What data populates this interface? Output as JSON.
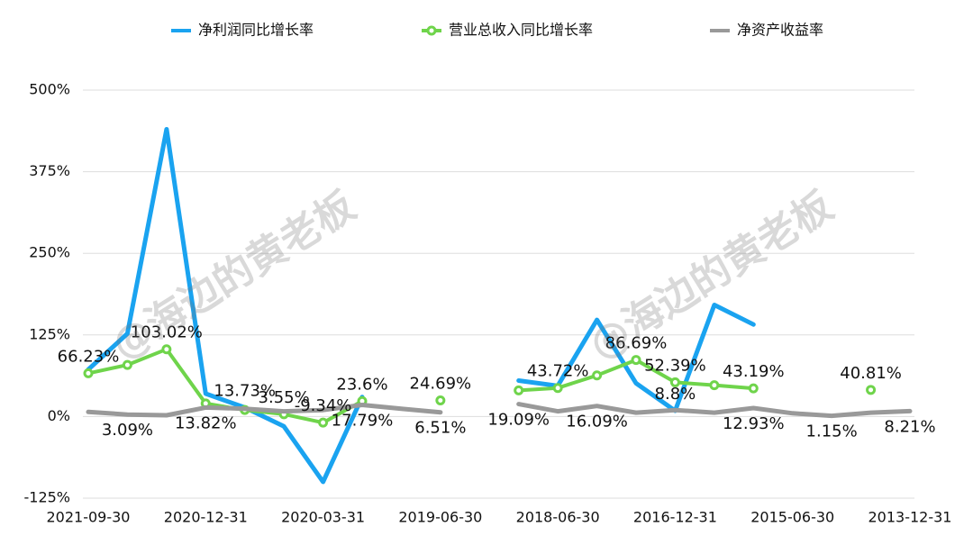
{
  "chart_data": {
    "type": "line",
    "categories": [
      "2021-09-30",
      null,
      null,
      "2020-12-31",
      null,
      null,
      "2020-03-31",
      null,
      null,
      "2019-06-30",
      null,
      null,
      "2018-06-30",
      null,
      null,
      "2016-12-31",
      null,
      null,
      "2015-06-30",
      null,
      null,
      "2013-12-31"
    ],
    "series": [
      {
        "name": "净利润同比增长率",
        "color": "#1aa3f0",
        "values": [
          72,
          127,
          440,
          35,
          13.73,
          -15,
          -100,
          30,
          null,
          null,
          null,
          55,
          47,
          148,
          51,
          8.8,
          171,
          141,
          null,
          null,
          null,
          null
        ],
        "value_labels": [
          null,
          null,
          null,
          null,
          "13.73%",
          null,
          null,
          null,
          null,
          null,
          null,
          null,
          null,
          null,
          null,
          "8.8%",
          null,
          null,
          null,
          null,
          null,
          null
        ]
      },
      {
        "name": "营业总收入同比增长率",
        "color": "#6fd44b",
        "values": [
          66.23,
          79,
          103.02,
          20,
          10,
          3.55,
          -9.34,
          23.6,
          null,
          24.69,
          null,
          40,
          43.72,
          63,
          86.69,
          52.39,
          48,
          43.19,
          null,
          null,
          40.81,
          null
        ],
        "value_labels": [
          "66.23%",
          null,
          "103.02%",
          null,
          null,
          "3.55%",
          "-9.34%",
          "23.6%",
          null,
          "24.69%",
          null,
          null,
          "43.72%",
          null,
          "86.69%",
          "52.39%",
          null,
          "43.19%",
          null,
          null,
          "40.81%",
          null
        ]
      },
      {
        "name": "净资产收益率",
        "color": "#999999",
        "values": [
          7,
          3.09,
          2,
          13.82,
          12,
          8,
          10,
          17.79,
          12,
          6.51,
          null,
          19.09,
          8,
          16.09,
          6,
          10,
          6,
          12.93,
          5,
          1.15,
          6,
          8.21
        ],
        "value_labels": [
          null,
          "3.09%",
          null,
          "13.82%",
          null,
          null,
          null,
          "17.79%",
          null,
          "6.51%",
          null,
          "19.09%",
          null,
          "16.09%",
          null,
          null,
          null,
          "12.93%",
          null,
          "1.15%",
          null,
          "8.21%"
        ]
      }
    ],
    "ylim": [
      -125,
      500
    ],
    "yticks": [
      {
        "value": -125,
        "label": "-125%"
      },
      {
        "value": 0,
        "label": "0%"
      },
      {
        "value": 125,
        "label": "125%"
      },
      {
        "value": 250,
        "label": "250%"
      },
      {
        "value": 375,
        "label": "375%"
      },
      {
        "value": 500,
        "label": "500%"
      }
    ],
    "grid": true,
    "watermark": "@海边的黄老板"
  }
}
